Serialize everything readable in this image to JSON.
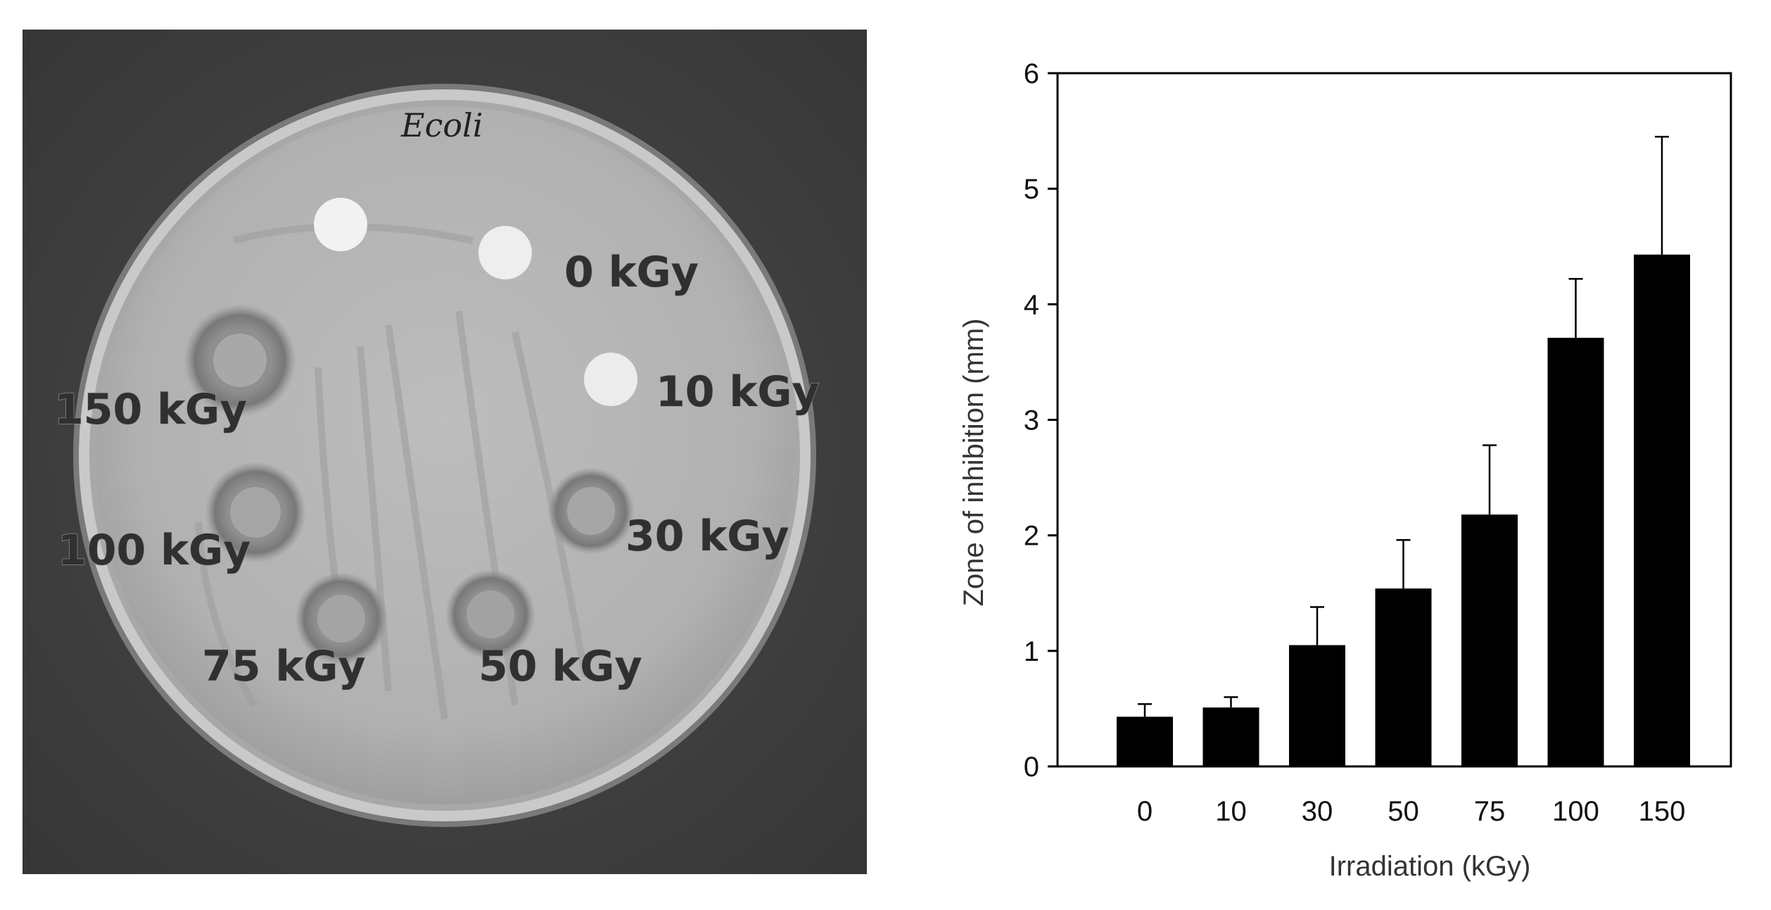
{
  "photo": {
    "handwriting": "Ecoli",
    "disc_labels": [
      "0 kGy",
      "10 kGy",
      "30 kGy",
      "50 kGy",
      "75 kGy",
      "100 kGy",
      "150 kGy"
    ]
  },
  "chart_data": {
    "type": "bar",
    "title": "",
    "xlabel": "Irradiation (kGy)",
    "ylabel": "Zone of inhibition (mm)",
    "categories": [
      "0",
      "10",
      "30",
      "50",
      "75",
      "100",
      "150"
    ],
    "values": [
      0.43,
      0.51,
      1.05,
      1.54,
      2.18,
      3.71,
      4.43
    ],
    "error_upper": [
      0.11,
      0.09,
      0.33,
      0.42,
      0.6,
      0.51,
      1.02
    ],
    "ylim": [
      0,
      6
    ],
    "yticks": [
      "0",
      "1",
      "2",
      "3",
      "4",
      "5",
      "6"
    ],
    "grid": false,
    "legend": "none",
    "bar_color": "#000000"
  }
}
